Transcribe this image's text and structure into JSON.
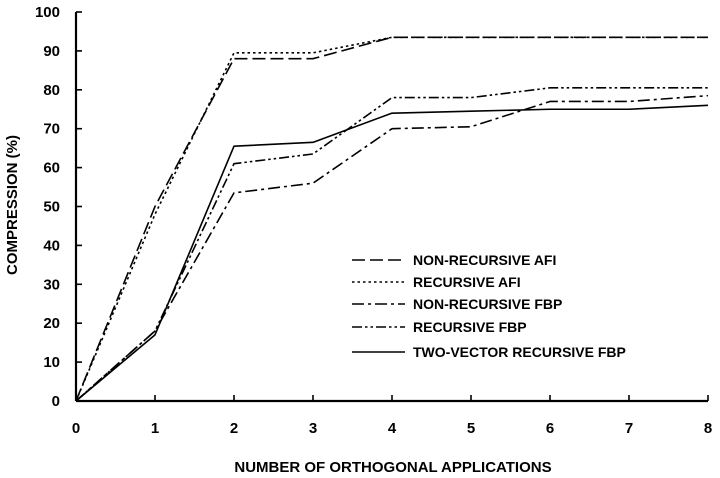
{
  "chart_data": {
    "type": "line",
    "title": "",
    "xlabel": "NUMBER OF ORTHOGONAL APPLICATIONS",
    "ylabel": "COMPRESSION (%)",
    "xlim": [
      0,
      8
    ],
    "ylim": [
      0,
      100
    ],
    "x_ticks": [
      "0",
      "1",
      "2",
      "3",
      "4",
      "5",
      "6",
      "7",
      "8"
    ],
    "y_ticks": [
      "0",
      "10",
      "20",
      "30",
      "40",
      "50",
      "60",
      "70",
      "80",
      "90",
      "100"
    ],
    "grid": false,
    "legend_position": "lower-right",
    "x": [
      0,
      1,
      2,
      3,
      4,
      5,
      6,
      7,
      8
    ],
    "series": [
      {
        "name": "NON-RECURSIVE AFI",
        "dash": "long-dash",
        "values": [
          0,
          50,
          88,
          88,
          93.5,
          93.5,
          93.5,
          93.5,
          93.5
        ]
      },
      {
        "name": "RECURSIVE AFI",
        "dash": "dotted",
        "values": [
          0,
          48,
          89.5,
          89.5,
          93.5,
          93.5,
          93.5,
          93.5,
          93.5
        ]
      },
      {
        "name": "NON-RECURSIVE FBP",
        "dash": "dash-dot",
        "values": [
          0,
          18,
          53.5,
          56,
          70,
          70.5,
          77,
          77,
          78.5
        ]
      },
      {
        "name": "RECURSIVE FBP",
        "dash": "dash-dot-dot",
        "values": [
          0,
          18,
          61,
          63.5,
          78,
          78,
          80.5,
          80.5,
          80.5
        ]
      },
      {
        "name": "TWO-VECTOR RECURSIVE FBP",
        "dash": "solid",
        "values": [
          0,
          17,
          65.5,
          66.5,
          74,
          74.5,
          75,
          75,
          76
        ]
      }
    ]
  }
}
